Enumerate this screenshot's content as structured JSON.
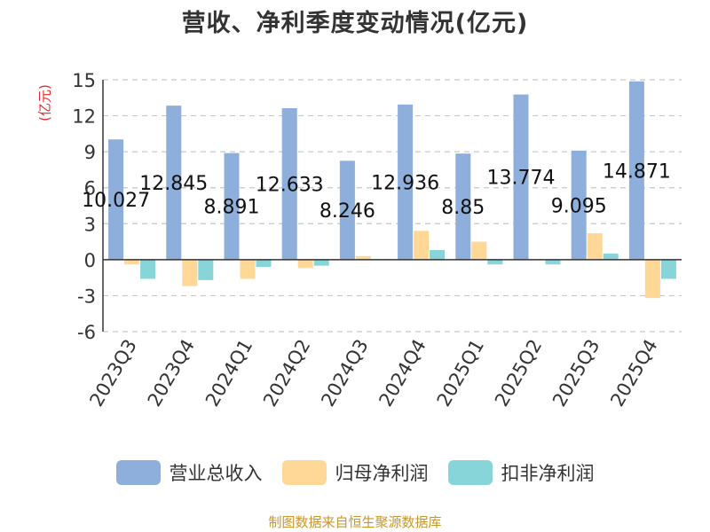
{
  "chart_data": {
    "type": "bar",
    "title": "营收、净利季度变动情况(亿元)",
    "ylabel": "(亿元)",
    "xlabel": "",
    "ylim": [
      -6,
      15
    ],
    "yticks": [
      15,
      12,
      9,
      6,
      3,
      0,
      -3,
      -6
    ],
    "grid": true,
    "legend_position": "bottom",
    "categories": [
      "2023Q3",
      "2023Q4",
      "2024Q1",
      "2024Q2",
      "2024Q3",
      "2024Q4",
      "2025Q1",
      "2025Q2",
      "2025Q3",
      "2025Q4"
    ],
    "series": [
      {
        "name": "营业总收入",
        "color": "#8eaedb",
        "values": [
          10.027,
          12.845,
          8.891,
          12.633,
          8.246,
          12.936,
          8.85,
          13.774,
          9.095,
          14.871
        ],
        "labels": [
          "10.027",
          "12.845",
          "8.891",
          "12.633",
          "8.246",
          "12.936",
          "8.85",
          "13.774",
          "9.095",
          "14.871"
        ]
      },
      {
        "name": "归母净利润",
        "color": "#ffd797",
        "values": [
          -0.4,
          -2.2,
          -1.6,
          -0.7,
          0.3,
          2.4,
          1.5,
          0.05,
          2.2,
          -3.2
        ]
      },
      {
        "name": "扣非净利润",
        "color": "#87d5d9",
        "values": [
          -1.6,
          -1.7,
          -0.6,
          -0.5,
          0.05,
          0.8,
          -0.4,
          -0.4,
          0.5,
          -1.6
        ]
      }
    ]
  },
  "source": "制图数据来自恒生聚源数据库"
}
